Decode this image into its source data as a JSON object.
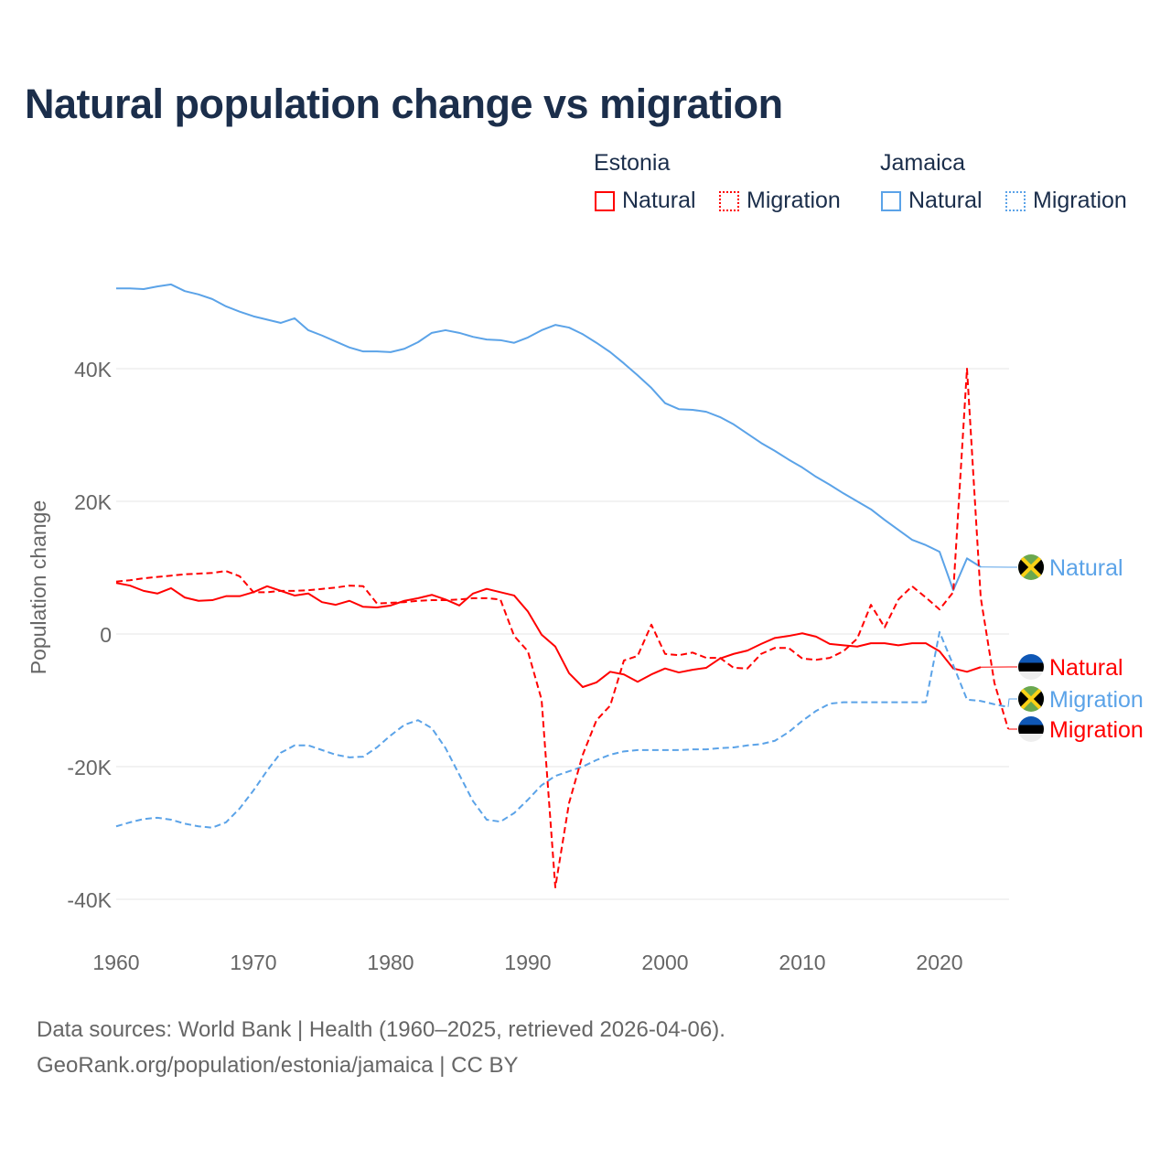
{
  "title": "Natural population change vs migration",
  "legend": {
    "groups": [
      {
        "country": "Estonia",
        "items": [
          {
            "label": "Natural",
            "style": "solid",
            "color": "#ff0000"
          },
          {
            "label": "Migration",
            "style": "dotted",
            "color": "#ff0000"
          }
        ]
      },
      {
        "country": "Jamaica",
        "items": [
          {
            "label": "Natural",
            "style": "solid",
            "color": "#5ba3e8"
          },
          {
            "label": "Migration",
            "style": "dotted",
            "color": "#5ba3e8"
          }
        ]
      }
    ]
  },
  "footer": {
    "line1": "Data sources: World Bank | Health (1960–2025, retrieved 2026-04-06).",
    "line2": "GeoRank.org/population/estonia/jamaica | CC BY"
  },
  "chart_data": {
    "type": "line",
    "title": "Natural population change vs migration",
    "xlabel": "",
    "ylabel": "Population change",
    "xlim": [
      1960,
      2025
    ],
    "ylim": [
      -40000,
      40000
    ],
    "x_ticks": [
      {
        "v": 1960,
        "label": "1960"
      },
      {
        "v": 1970,
        "label": "1970"
      },
      {
        "v": 1980,
        "label": "1980"
      },
      {
        "v": 1990,
        "label": "1990"
      },
      {
        "v": 2000,
        "label": "2000"
      },
      {
        "v": 2010,
        "label": "2010"
      },
      {
        "v": 2020,
        "label": "2020"
      }
    ],
    "y_ticks": [
      {
        "v": 40000,
        "label": "40K"
      },
      {
        "v": 20000,
        "label": "20K"
      },
      {
        "v": 0,
        "label": "0"
      },
      {
        "v": -20000,
        "label": "-20K"
      },
      {
        "v": -40000,
        "label": "-40K"
      }
    ],
    "grid": true,
    "series": [
      {
        "name": "Jamaica Natural",
        "end_label": "Natural",
        "country": "Jamaica",
        "color": "#5ba3e8",
        "dash": false,
        "start": 1960,
        "values": [
          52.1,
          52.1,
          52.0,
          52.4,
          52.7,
          51.7,
          51.2,
          50.5,
          49.4,
          48.6,
          47.9,
          47.4,
          46.9,
          47.6,
          45.8,
          45.0,
          44.1,
          43.2,
          42.6,
          42.6,
          42.5,
          43.0,
          44.0,
          45.4,
          45.8,
          45.4,
          44.8,
          44.4,
          44.3,
          43.9,
          44.7,
          45.8,
          46.6,
          46.2,
          45.2,
          43.9,
          42.5,
          40.8,
          39.0,
          37.1,
          34.8,
          33.9,
          33.8,
          33.5,
          32.7,
          31.6,
          30.2,
          28.8,
          27.6,
          26.3,
          25.1,
          23.7,
          22.5,
          21.2,
          20.0,
          18.8,
          17.2,
          15.7,
          14.2,
          13.4,
          12.4,
          6.6,
          11.4,
          10.1
        ]
      },
      {
        "name": "Estonia Natural",
        "end_label": "Natural",
        "country": "Estonia",
        "color": "#ff0000",
        "dash": false,
        "start": 1960,
        "values": [
          7.7,
          7.3,
          6.5,
          6.1,
          6.9,
          5.5,
          5.0,
          5.1,
          5.7,
          5.7,
          6.3,
          7.2,
          6.5,
          5.8,
          6.1,
          4.8,
          4.4,
          5.0,
          4.1,
          4.0,
          4.3,
          5.0,
          5.4,
          5.9,
          5.2,
          4.3,
          6.1,
          6.8,
          6.3,
          5.8,
          3.4,
          -0.1,
          -1.9,
          -5.9,
          -8.0,
          -7.3,
          -5.7,
          -6.1,
          -7.2,
          -6.1,
          -5.2,
          -5.8,
          -5.4,
          -5.1,
          -3.7,
          -3.0,
          -2.5,
          -1.5,
          -0.6,
          -0.3,
          0.1,
          -0.4,
          -1.5,
          -1.7,
          -1.9,
          -1.4,
          -1.4,
          -1.7,
          -1.4,
          -1.4,
          -2.6,
          -5.2,
          -5.7,
          -5.0
        ]
      },
      {
        "name": "Jamaica Migration",
        "end_label": "Migration",
        "country": "Jamaica",
        "color": "#5ba3e8",
        "dash": true,
        "start": 1960,
        "values": [
          -29.0,
          -28.4,
          -27.9,
          -27.7,
          -28.0,
          -28.6,
          -29.0,
          -29.2,
          -28.4,
          -26.3,
          -23.6,
          -20.6,
          -17.9,
          -16.8,
          -16.8,
          -17.5,
          -18.2,
          -18.6,
          -18.5,
          -17.1,
          -15.3,
          -13.7,
          -13.0,
          -14.2,
          -17.2,
          -21.2,
          -25.2,
          -28.0,
          -28.3,
          -27.0,
          -25.0,
          -22.8,
          -21.4,
          -20.7,
          -20.0,
          -19.0,
          -18.2,
          -17.7,
          -17.5,
          -17.5,
          -17.5,
          -17.5,
          -17.4,
          -17.4,
          -17.2,
          -17.1,
          -16.8,
          -16.6,
          -16.1,
          -14.8,
          -13.1,
          -11.6,
          -10.5,
          -10.3,
          -10.3,
          -10.3,
          -10.3,
          -10.3,
          -10.3,
          -10.3,
          0.3,
          -4.7,
          -9.9,
          -10.1,
          -10.6,
          -11.0
        ]
      },
      {
        "name": "Estonia Migration",
        "end_label": "Migration",
        "country": "Estonia",
        "color": "#ff0000",
        "dash": true,
        "start": 1960,
        "values": [
          7.9,
          8.1,
          8.4,
          8.6,
          8.8,
          9.0,
          9.1,
          9.2,
          9.5,
          8.7,
          6.3,
          6.3,
          6.5,
          6.5,
          6.6,
          6.8,
          7.0,
          7.3,
          7.2,
          4.6,
          4.7,
          4.8,
          5.0,
          5.1,
          5.1,
          5.2,
          5.4,
          5.4,
          5.2,
          -0.3,
          -2.6,
          -9.9,
          -38.2,
          -25.5,
          -18.2,
          -13.0,
          -10.8,
          -4.0,
          -3.3,
          1.4,
          -3.0,
          -3.2,
          -2.8,
          -3.6,
          -3.6,
          -5.1,
          -5.2,
          -3.0,
          -2.1,
          -2.1,
          -3.7,
          -3.9,
          -3.6,
          -2.6,
          -0.7,
          4.4,
          1.0,
          5.2,
          7.2,
          5.5,
          3.7,
          6.3,
          40.0,
          5.5,
          -7.4,
          -14.3
        ]
      }
    ],
    "value_unit": "thousands"
  }
}
